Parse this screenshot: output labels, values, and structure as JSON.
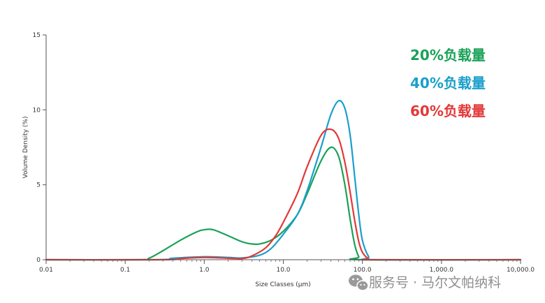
{
  "chart_data": {
    "type": "line",
    "xlabel": "Size Classes (µm)",
    "ylabel": "Volume Density (%)",
    "x_scale": "log",
    "xlim": [
      0.01,
      10000
    ],
    "ylim": [
      0,
      15
    ],
    "x_ticks": [
      {
        "value": 0.01,
        "label": "0.01"
      },
      {
        "value": 0.1,
        "label": "0.1"
      },
      {
        "value": 1,
        "label": "1.0"
      },
      {
        "value": 10,
        "label": "10.0"
      },
      {
        "value": 100,
        "label": "100.0"
      },
      {
        "value": 1000,
        "label": "1,000.0"
      },
      {
        "value": 10000,
        "label": "10,000.0"
      }
    ],
    "y_ticks": [
      {
        "value": 0,
        "label": "0"
      },
      {
        "value": 5,
        "label": "5"
      },
      {
        "value": 10,
        "label": "10"
      },
      {
        "value": 15,
        "label": "15"
      }
    ],
    "grid": false,
    "legend_position": "top-right",
    "series": [
      {
        "name": "20%负载量",
        "color": "#1aa157",
        "points": [
          [
            0.01,
            0
          ],
          [
            0.15,
            0
          ],
          [
            0.2,
            0.1
          ],
          [
            0.3,
            0.6
          ],
          [
            0.5,
            1.3
          ],
          [
            0.8,
            1.85
          ],
          [
            1.0,
            2.0
          ],
          [
            1.3,
            2.0
          ],
          [
            2.0,
            1.6
          ],
          [
            3.0,
            1.2
          ],
          [
            4.0,
            1.05
          ],
          [
            5.0,
            1.05
          ],
          [
            7.0,
            1.3
          ],
          [
            10,
            1.9
          ],
          [
            15,
            3.0
          ],
          [
            20,
            4.4
          ],
          [
            30,
            6.6
          ],
          [
            40,
            7.5
          ],
          [
            50,
            6.9
          ],
          [
            60,
            5.0
          ],
          [
            70,
            2.7
          ],
          [
            80,
            1.0
          ],
          [
            90,
            0.2
          ],
          [
            100,
            0
          ],
          [
            10000,
            0
          ]
        ]
      },
      {
        "name": "40%负载量",
        "color": "#1a9fcb",
        "points": [
          [
            0.01,
            0
          ],
          [
            0.25,
            0
          ],
          [
            0.4,
            0.1
          ],
          [
            1.0,
            0.2
          ],
          [
            2.0,
            0.15
          ],
          [
            3.0,
            0.12
          ],
          [
            5.0,
            0.3
          ],
          [
            7.0,
            0.75
          ],
          [
            10,
            1.7
          ],
          [
            15,
            3.0
          ],
          [
            20,
            4.6
          ],
          [
            30,
            7.5
          ],
          [
            40,
            9.7
          ],
          [
            50,
            10.6
          ],
          [
            60,
            10.1
          ],
          [
            70,
            8.3
          ],
          [
            80,
            5.5
          ],
          [
            90,
            3.0
          ],
          [
            100,
            1.3
          ],
          [
            120,
            0.2
          ],
          [
            140,
            0
          ],
          [
            10000,
            0
          ]
        ]
      },
      {
        "name": "60%负载量",
        "color": "#e33838",
        "points": [
          [
            0.01,
            0
          ],
          [
            0.3,
            0
          ],
          [
            0.5,
            0.08
          ],
          [
            1.0,
            0.15
          ],
          [
            2.0,
            0.1
          ],
          [
            3.0,
            0.08
          ],
          [
            4.0,
            0.25
          ],
          [
            6.0,
            0.8
          ],
          [
            8.0,
            1.6
          ],
          [
            10,
            2.5
          ],
          [
            15,
            4.4
          ],
          [
            20,
            6.2
          ],
          [
            30,
            8.3
          ],
          [
            40,
            8.7
          ],
          [
            50,
            8.1
          ],
          [
            60,
            6.5
          ],
          [
            70,
            4.5
          ],
          [
            80,
            2.6
          ],
          [
            90,
            1.2
          ],
          [
            100,
            0.5
          ],
          [
            120,
            0.05
          ],
          [
            140,
            0
          ],
          [
            10000,
            0
          ]
        ]
      }
    ]
  },
  "watermark": {
    "text": "服务号 · 马尔文帕纳科",
    "icon": "wechat-icon"
  }
}
